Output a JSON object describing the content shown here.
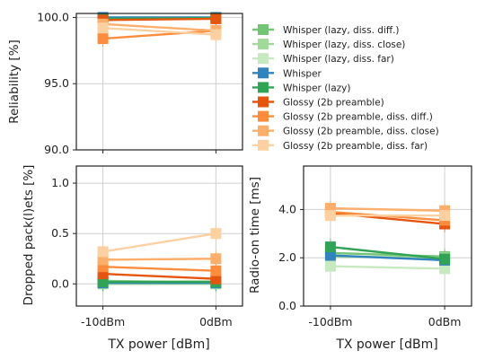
{
  "chart_data": {
    "type": "line",
    "x_categories": [
      "-10dBm",
      "0dBm"
    ],
    "xlabel": "TX power [dBm]",
    "legend": {
      "placement": "upper-right, outside top-left panel",
      "entries": [
        {
          "label": "Whisper (lazy, diss. diff.)",
          "color": "#74c476"
        },
        {
          "label": "Whisper (lazy, diss. close)",
          "color": "#a1d99b"
        },
        {
          "label": "Whisper (lazy, diss. far)",
          "color": "#c7e9c0"
        },
        {
          "label": "Whisper",
          "color": "#3182bd"
        },
        {
          "label": "Whisper (lazy)",
          "color": "#31a354"
        },
        {
          "label": "Glossy (2b preamble)",
          "color": "#e6550d"
        },
        {
          "label": "Glossy (2b preamble, diss. diff.)",
          "color": "#fd8d3c"
        },
        {
          "label": "Glossy (2b preamble, diss. close)",
          "color": "#fdae6b"
        },
        {
          "label": "Glossy (2b preamble, diss. far)",
          "color": "#fdd0a2"
        }
      ]
    },
    "panels": [
      {
        "id": "reliability",
        "ylabel": "Reliability [%]",
        "ylim": [
          90,
          100.3
        ],
        "yticks": [
          "90.0",
          "95.0",
          "100.0"
        ],
        "show_x_ticklabels": false,
        "series": [
          {
            "legend_index": 0,
            "values": [
              99.9,
              99.95
            ]
          },
          {
            "legend_index": 1,
            "values": [
              100.0,
              100.0
            ]
          },
          {
            "legend_index": 2,
            "values": [
              99.95,
              99.95
            ]
          },
          {
            "legend_index": 3,
            "values": [
              100.0,
              100.0
            ]
          },
          {
            "legend_index": 4,
            "values": [
              99.9,
              99.95
            ]
          },
          {
            "legend_index": 5,
            "values": [
              99.8,
              99.9
            ]
          },
          {
            "legend_index": 6,
            "values": [
              98.4,
              99.0
            ]
          },
          {
            "legend_index": 7,
            "values": [
              99.5,
              99.0
            ]
          },
          {
            "legend_index": 8,
            "values": [
              99.2,
              98.7
            ]
          }
        ]
      },
      {
        "id": "dropped",
        "ylabel": "Dropped pack(l)ets [%]",
        "ylim": [
          -0.22,
          1.17
        ],
        "yticks": [
          "0.0",
          "0.5",
          "1.0"
        ],
        "show_x_ticklabels": true,
        "series": [
          {
            "legend_index": 0,
            "values": [
              0.03,
              0.02
            ]
          },
          {
            "legend_index": 1,
            "values": [
              0.0,
              0.0
            ]
          },
          {
            "legend_index": 2,
            "values": [
              0.02,
              0.03
            ]
          },
          {
            "legend_index": 3,
            "values": [
              0.01,
              0.01
            ]
          },
          {
            "legend_index": 4,
            "values": [
              0.02,
              0.02
            ]
          },
          {
            "legend_index": 5,
            "values": [
              0.1,
              0.05
            ]
          },
          {
            "legend_index": 6,
            "values": [
              0.17,
              0.13
            ]
          },
          {
            "legend_index": 7,
            "values": [
              0.24,
              0.25
            ]
          },
          {
            "legend_index": 8,
            "values": [
              0.32,
              0.5
            ]
          }
        ]
      },
      {
        "id": "radio_on",
        "ylabel": "Radio-on time [ms]",
        "ylim": [
          0,
          5.8
        ],
        "yticks": [
          "0.0",
          "2.0",
          "4.0"
        ],
        "show_x_ticklabels": true,
        "series": [
          {
            "legend_index": 0,
            "values": [
              2.2,
              2.05
            ]
          },
          {
            "legend_index": 1,
            "values": [
              2.05,
              2.0
            ]
          },
          {
            "legend_index": 2,
            "values": [
              1.65,
              1.55
            ]
          },
          {
            "legend_index": 3,
            "values": [
              2.1,
              1.9
            ]
          },
          {
            "legend_index": 4,
            "values": [
              2.45,
              1.95
            ]
          },
          {
            "legend_index": 5,
            "values": [
              3.85,
              3.4
            ]
          },
          {
            "legend_index": 6,
            "values": [
              3.9,
              3.55
            ]
          },
          {
            "legend_index": 7,
            "values": [
              4.05,
              3.95
            ]
          },
          {
            "legend_index": 8,
            "values": [
              3.75,
              3.75
            ]
          }
        ]
      }
    ]
  }
}
